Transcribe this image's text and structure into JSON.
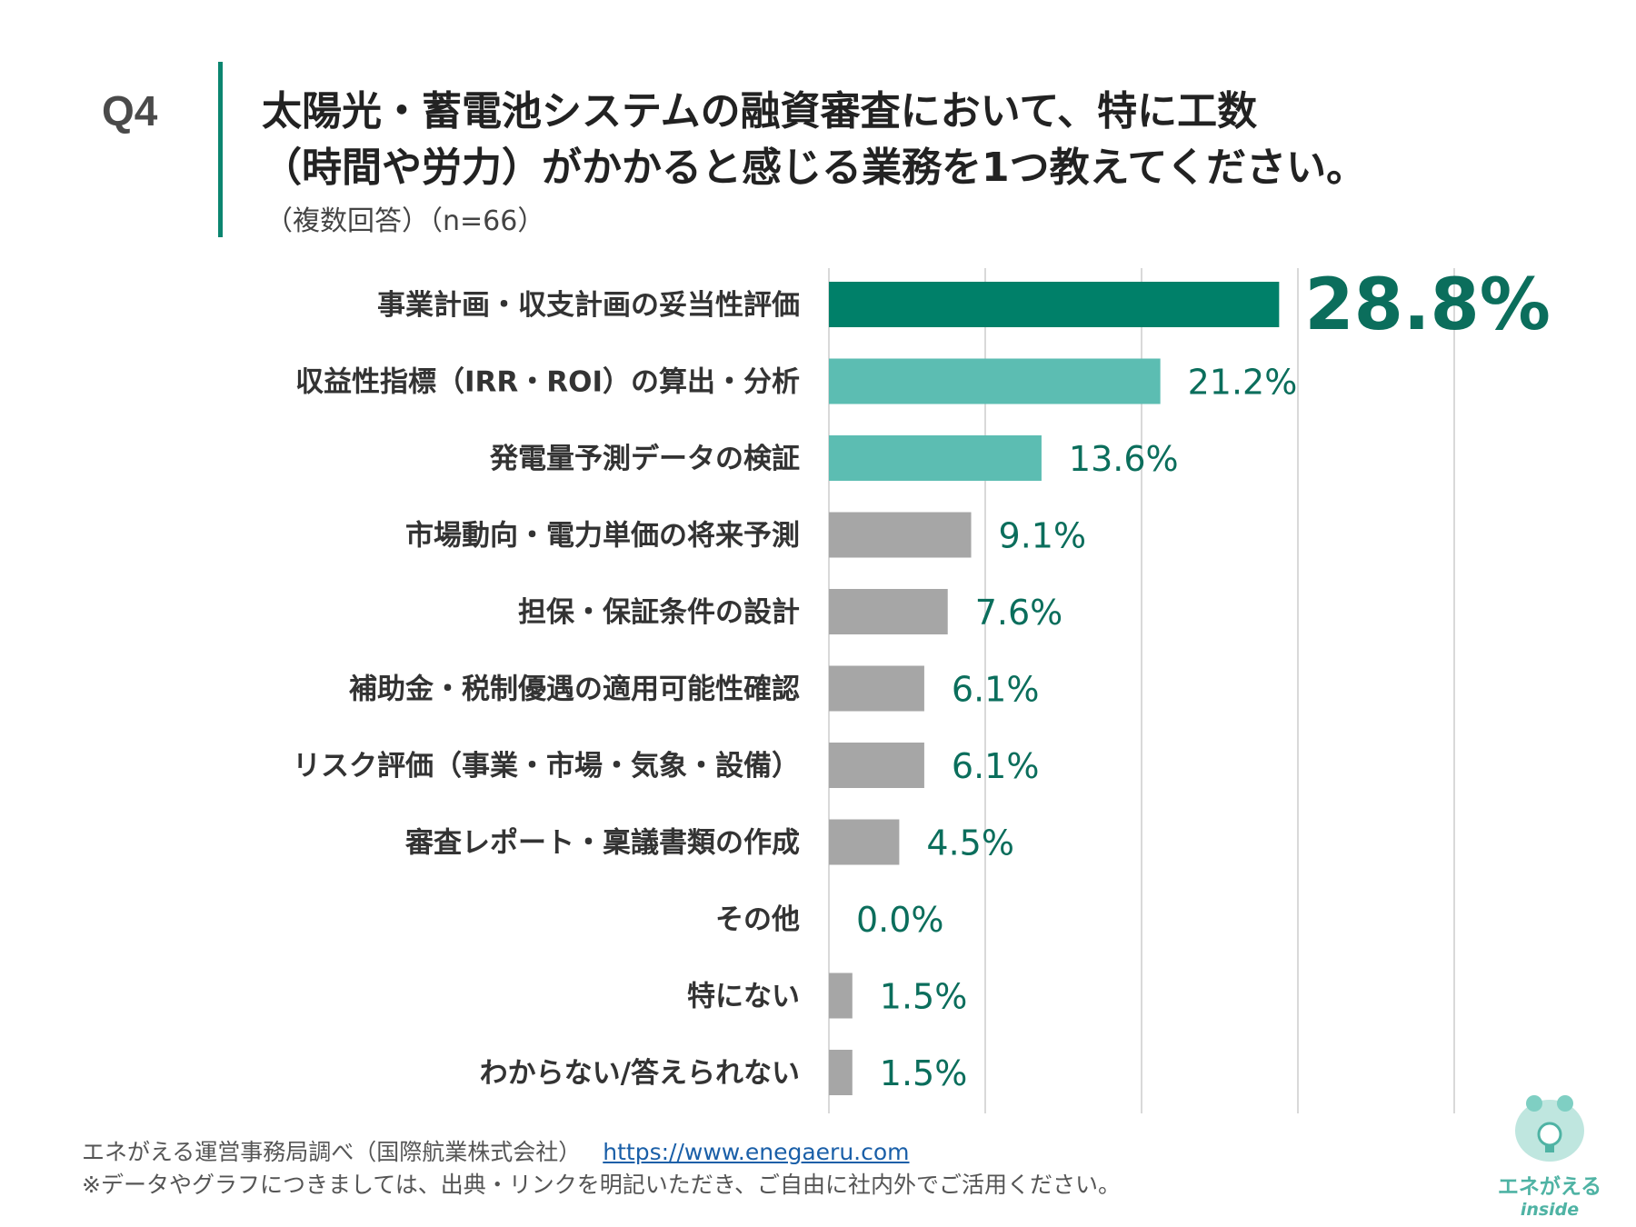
{
  "header": {
    "question_no": "Q4",
    "title_line1": "太陽光・蓄電池システムの融資審査において、特に工数",
    "title_line2": "（時間や労力）がかかると感じる業務を1つ教えてください。",
    "subtitle": "（複数回答）（n=66）"
  },
  "colors": {
    "accent_dark": "#008069",
    "accent_light": "#5cbdb2",
    "neutral": "#a6a6a6",
    "value_text": "#0b6e5c"
  },
  "chart_data": {
    "type": "bar",
    "orientation": "horizontal",
    "categories": [
      "事業計画・収支計画の妥当性評価",
      "収益性指標（IRR・ROI）の算出・分析",
      "発電量予測データの検証",
      "市場動向・電力単価の将来予測",
      "担保・保証条件の設計",
      "補助金・税制優遇の適用可能性確認",
      "リスク評価（事業・市場・気象・設備）",
      "審査レポート・稟議書類の作成",
      "その他",
      "特にない",
      "わからない/答えられない"
    ],
    "values": [
      28.8,
      21.2,
      13.6,
      9.1,
      7.6,
      6.1,
      6.1,
      4.5,
      0.0,
      1.5,
      1.5
    ],
    "value_labels": [
      "28.8%",
      "21.2%",
      "13.6%",
      "9.1%",
      "7.6%",
      "6.1%",
      "6.1%",
      "4.5%",
      "0.0%",
      "1.5%",
      "1.5%"
    ],
    "bar_colors": [
      "dark",
      "light",
      "light",
      "gray",
      "gray",
      "gray",
      "gray",
      "gray",
      "gray",
      "gray",
      "gray"
    ],
    "xlim": [
      0,
      40
    ],
    "grid_ticks": [
      0,
      10,
      20,
      30,
      40
    ],
    "grid": true,
    "unit": "%"
  },
  "footer": {
    "source": "エネがえる運営事務局調べ（国際航業株式会社）",
    "url": "https://www.enegaeru.com",
    "note": "※データやグラフにつきましては、出典・リンクを明記いただき、ご自由に社内外でご活用ください。"
  },
  "logo": {
    "name": "エネがえる",
    "sub": "inside"
  }
}
